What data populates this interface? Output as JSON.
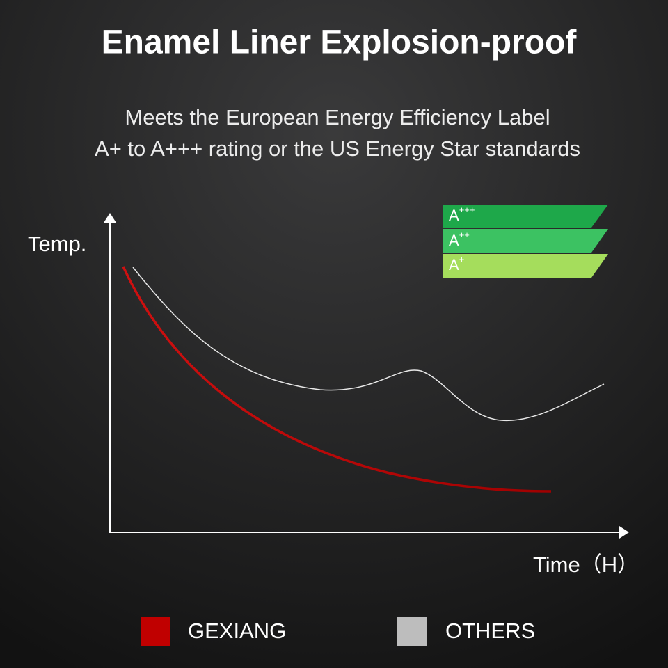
{
  "header": {
    "title": "Enamel Liner Explosion-proof",
    "subtitle": [
      "Meets the European Energy Efficiency Label",
      "A+ to A+++ rating or the US Energy Star standards"
    ]
  },
  "badges": [
    {
      "base": "A",
      "sup": "+++"
    },
    {
      "base": "A",
      "sup": "++"
    },
    {
      "base": "A",
      "sup": "+"
    }
  ],
  "axes": {
    "y_label": "Temp.",
    "x_label": "Time（H）"
  },
  "legend": [
    "GEXIANG",
    "OTHERS"
  ]
}
